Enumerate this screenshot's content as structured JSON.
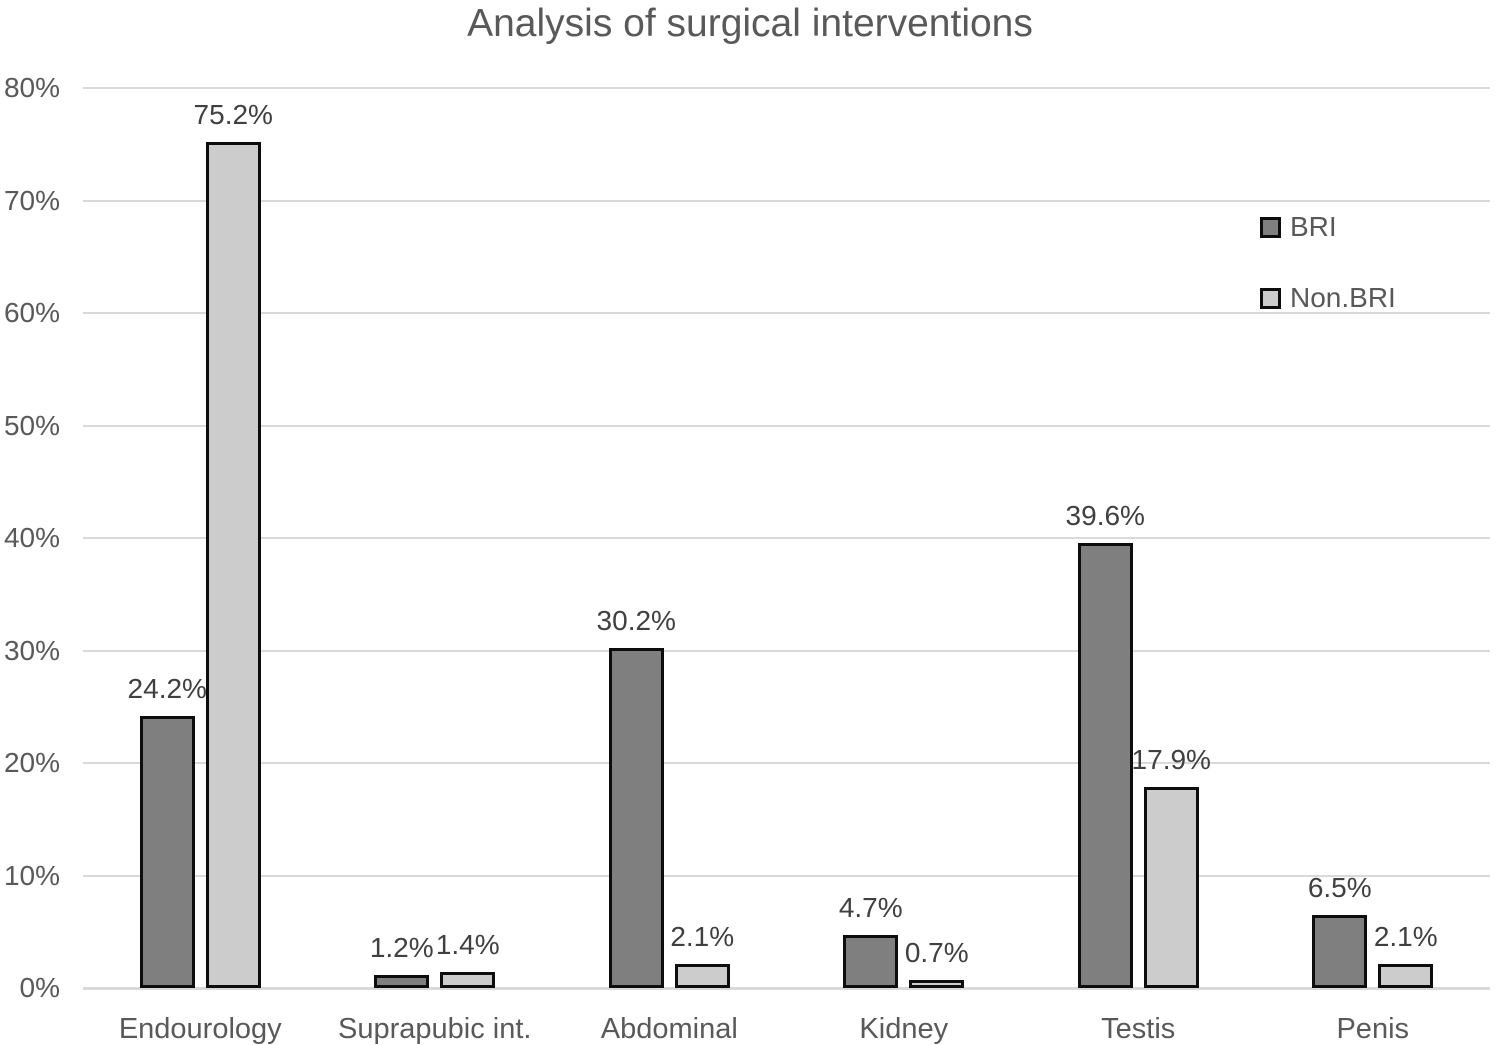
{
  "title": "Analysis of surgical interventions",
  "chart_data": {
    "type": "bar",
    "title": "Analysis of surgical interventions",
    "categories": [
      "Endourology",
      "Suprapubic int.",
      "Abdominal",
      "Kidney",
      "Testis",
      "Penis"
    ],
    "series": [
      {
        "name": "BRI",
        "values": [
          24.2,
          1.2,
          30.2,
          4.7,
          39.6,
          6.5
        ],
        "labels": [
          "24.2%",
          "1.2%",
          "30.2%",
          "4.7%",
          "39.6%",
          "6.5%"
        ],
        "color": "#7f7f7f"
      },
      {
        "name": "Non.BRI",
        "values": [
          75.2,
          1.4,
          2.1,
          0.7,
          17.9,
          2.1
        ],
        "labels": [
          "75.2%",
          "1.4%",
          "2.1%",
          "0.7%",
          "17.9%",
          "2.1%"
        ],
        "color": "#cccccc"
      }
    ],
    "xlabel": "",
    "ylabel": "",
    "ylim": [
      0,
      80
    ],
    "yticks": [
      0,
      10,
      20,
      30,
      40,
      50,
      60,
      70,
      80
    ],
    "ytick_labels": [
      "0%",
      "10%",
      "20%",
      "30%",
      "40%",
      "50%",
      "60%",
      "70%",
      "80%"
    ],
    "grid": true,
    "legend_position": "upper-right",
    "bar_border_color": "#0d0d0d"
  },
  "colors": {
    "title_text": "#595959",
    "axis_text": "#595959",
    "data_label_text": "#404040",
    "gridline": "#d9d9d9",
    "bri_fill": "#7f7f7f",
    "non_bri_fill": "#cccccc"
  }
}
